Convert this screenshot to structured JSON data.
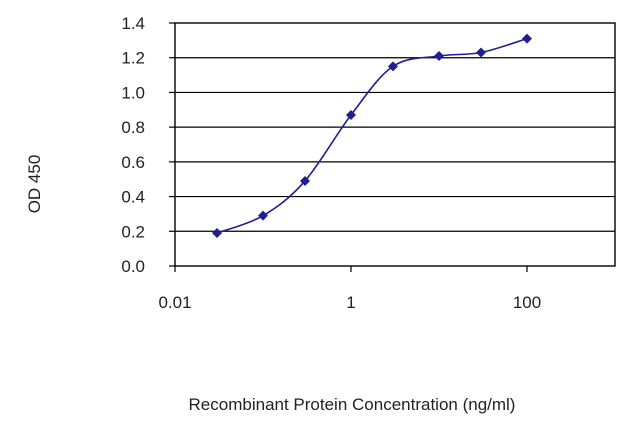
{
  "chart_data": {
    "type": "line",
    "title": "",
    "xlabel": "Recombinant Protein Concentration (ng/ml)",
    "ylabel": "OD 450",
    "xscale": "log10",
    "xlim": [
      0.01,
      1000
    ],
    "ylim": [
      0.0,
      1.4
    ],
    "x_ticks": [
      0.01,
      1,
      100
    ],
    "x_tick_labels": [
      "0.01",
      "1",
      "100"
    ],
    "y_ticks": [
      0.0,
      0.2,
      0.4,
      0.6,
      0.8,
      1.0,
      1.2,
      1.4
    ],
    "y_tick_labels": [
      "0.0",
      "0.2",
      "0.4",
      "0.6",
      "0.8",
      "1.0",
      "1.2",
      "1.4"
    ],
    "grid": "horizontal",
    "legend": "none",
    "series": [
      {
        "x": [
          0.03,
          0.1,
          0.3,
          1,
          3,
          10,
          30,
          100
        ],
        "y": [
          0.19,
          0.29,
          0.49,
          0.87,
          1.15,
          1.21,
          1.23,
          1.31
        ],
        "marker": "diamond",
        "color": "#1f1f8f"
      }
    ]
  }
}
